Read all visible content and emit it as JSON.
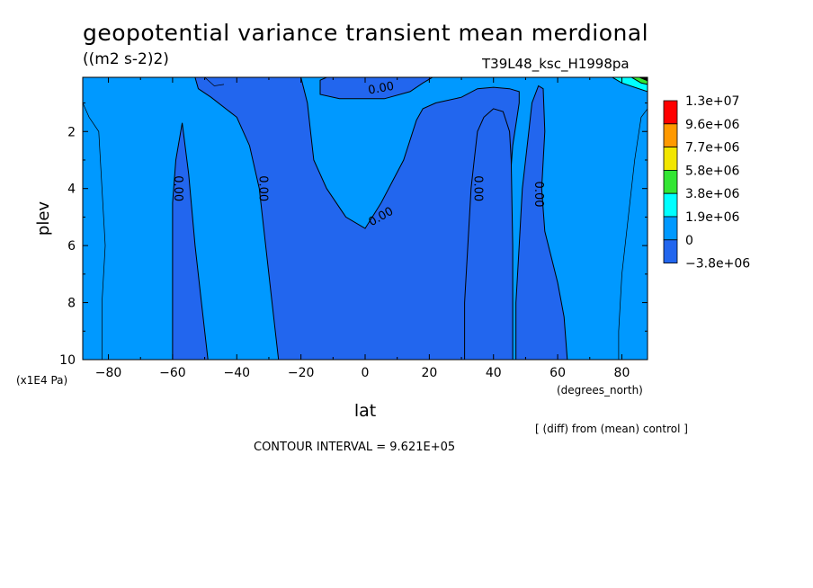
{
  "title": "geopotential variance transient mean merdional",
  "units": "((m2 s-2)2)",
  "run_label": "T39L48_ksc_H1998pa",
  "diff_note": "[ (diff) from (mean) control ]",
  "contour_interval": "CONTOUR INTERVAL = 9.621E+05",
  "chart_data": {
    "type": "contour",
    "xlabel": "lat",
    "x_units": "(degrees_north)",
    "ylabel": "plev",
    "y_units": "(x1E4 Pa)",
    "xlim": [
      -88,
      88
    ],
    "ylim": [
      10,
      0.1
    ],
    "x_ticks": [
      -80,
      -60,
      -40,
      -20,
      0,
      20,
      40,
      60,
      80
    ],
    "x_tick_labels": [
      "−80",
      "−60",
      "−40",
      "−20",
      "0",
      "20",
      "40",
      "60",
      "80"
    ],
    "y_ticks": [
      2,
      4,
      6,
      8,
      10
    ],
    "y_tick_labels": [
      "2",
      "4",
      "6",
      "8",
      "10"
    ],
    "contour_labels": [
      "0.00",
      "0.00",
      "0.00",
      "0.00",
      "0.00",
      "0.00"
    ],
    "colorbar": {
      "labels": [
        "1.3e+07",
        "9.6e+06",
        "7.7e+06",
        "5.8e+06",
        "3.8e+06",
        "1.9e+06",
        "0",
        "−3.8e+06"
      ],
      "colors": [
        "#ff0000",
        "#ff9900",
        "#f2e600",
        "#33e633",
        "#00ffff",
        "#0099ff",
        "#2266ee"
      ]
    },
    "regions": [
      {
        "level": "negative",
        "color": "#2266ee",
        "polygon": [
          [
            -60,
            10
          ],
          [
            -60,
            4.5
          ],
          [
            -59,
            3
          ],
          [
            -57,
            1.7
          ],
          [
            -55,
            3.5
          ],
          [
            -53,
            6
          ],
          [
            -51,
            8
          ],
          [
            -49,
            10
          ]
        ]
      },
      {
        "level": "negative",
        "color": "#2266ee",
        "polygon": [
          [
            -27,
            10
          ],
          [
            -29,
            8
          ],
          [
            -31,
            6
          ],
          [
            -33,
            4
          ],
          [
            -36,
            2.5
          ],
          [
            -40,
            1.5
          ],
          [
            -48,
            0.8
          ],
          [
            -52,
            0.5
          ],
          [
            -53,
            0.1
          ],
          [
            -20,
            0.1
          ],
          [
            -18,
            1
          ],
          [
            -17,
            2
          ],
          [
            -16,
            3
          ],
          [
            -12,
            4
          ],
          [
            -6,
            5
          ],
          [
            0,
            5.4
          ],
          [
            5,
            4.5
          ],
          [
            12,
            3
          ],
          [
            16,
            1.6
          ],
          [
            18,
            1.2
          ],
          [
            22,
            1
          ],
          [
            30,
            0.8
          ],
          [
            35,
            0.5
          ],
          [
            40,
            0.45
          ],
          [
            45,
            0.5
          ],
          [
            48,
            0.6
          ],
          [
            48,
            1
          ],
          [
            46,
            2.5
          ],
          [
            45,
            4
          ],
          [
            44,
            6
          ],
          [
            44,
            8
          ],
          [
            45,
            10
          ]
        ]
      },
      {
        "level": "negative",
        "color": "#2266ee",
        "polygon": [
          [
            31,
            10
          ],
          [
            31,
            8
          ],
          [
            32,
            6
          ],
          [
            33,
            4
          ],
          [
            34,
            3
          ],
          [
            35,
            2
          ],
          [
            37,
            1.5
          ],
          [
            40,
            1.2
          ],
          [
            43,
            1.3
          ],
          [
            45,
            2
          ],
          [
            45.5,
            3
          ],
          [
            46,
            6
          ],
          [
            46,
            10
          ]
        ]
      },
      {
        "level": "negative",
        "color": "#2266ee",
        "polygon": [
          [
            47,
            10
          ],
          [
            47,
            8
          ],
          [
            48,
            6
          ],
          [
            49,
            4
          ],
          [
            50,
            3
          ],
          [
            51,
            2
          ],
          [
            52,
            1
          ],
          [
            54,
            0.4
          ],
          [
            55.5,
            0.5
          ],
          [
            56,
            2
          ],
          [
            55,
            4
          ],
          [
            56,
            5.5
          ],
          [
            60,
            7.3
          ],
          [
            62,
            8.5
          ],
          [
            63,
            10
          ]
        ]
      },
      {
        "level": "negative",
        "color": "#2266ee",
        "polygon": [
          [
            -14,
            0.2
          ],
          [
            -14,
            0.7
          ],
          [
            -8,
            0.85
          ],
          [
            6,
            0.85
          ],
          [
            14,
            0.6
          ],
          [
            18,
            0.3
          ],
          [
            21,
            0.1
          ],
          [
            -12,
            0.1
          ]
        ]
      },
      {
        "level": "positive",
        "color": "#00ffff",
        "polygon": [
          [
            77,
            0.1
          ],
          [
            88,
            0.1
          ],
          [
            88,
            0.6
          ],
          [
            84,
            0.45
          ],
          [
            80,
            0.3
          ]
        ]
      },
      {
        "level": "positive",
        "color": "#33e633",
        "polygon": [
          [
            83,
            0.1
          ],
          [
            88,
            0.1
          ],
          [
            88,
            0.35
          ],
          [
            86,
            0.3
          ]
        ]
      },
      {
        "level": "positive",
        "color": "#000000",
        "polygon": [
          [
            85.5,
            0.1
          ],
          [
            88,
            0.1
          ],
          [
            88,
            0.22
          ]
        ]
      }
    ]
  }
}
